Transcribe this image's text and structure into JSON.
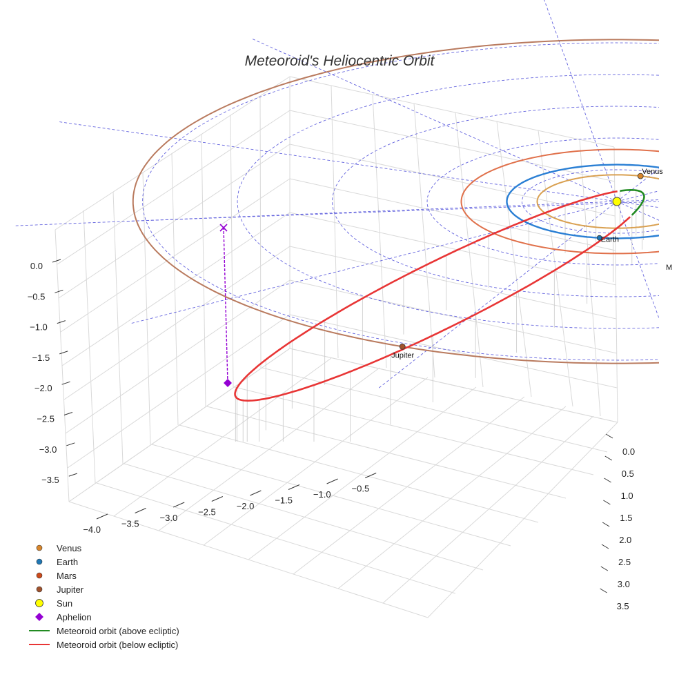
{
  "chart_data": {
    "type": "line",
    "title": "Meteoroid's Heliocentric Orbit",
    "projection": "3d",
    "xlabel": "",
    "ylabel": "",
    "zlabel": "",
    "x_ticks": [
      "−4.0",
      "−3.5",
      "−3.0",
      "−2.5",
      "−2.0",
      "−1.5",
      "−1.0",
      "−0.5"
    ],
    "y_ticks": [
      "0.0",
      "0.5",
      "1.0",
      "1.5",
      "2.0",
      "2.5",
      "3.0",
      "3.5"
    ],
    "z_ticks": [
      "0.0",
      "−0.5",
      "−1.0",
      "−1.5",
      "−2.0",
      "−2.5",
      "−3.0",
      "−3.5"
    ],
    "xlim": [
      -4.2,
      -0.3
    ],
    "ylim": [
      -0.2,
      3.7
    ],
    "zlim": [
      -3.7,
      0.3
    ],
    "grid": true,
    "legend_position": "bottom-left",
    "colors": {
      "venus": "#d8862c",
      "earth": "#1f77b4",
      "mars": "#cc4a1c",
      "jupiter": "#a0522d",
      "sun": "#ffff00",
      "aphelion": "#9400d3",
      "above": "#228b22",
      "below": "#e83535",
      "venus_orbit": "#d9a050",
      "earth_orbit": "#2a7fd4",
      "mars_orbit": "#e0704a",
      "jupiter_orbit": "#b97a5e",
      "reference_grid": "#4a4ad9"
    },
    "planets": [
      {
        "name": "Venus",
        "label": "Venus",
        "orbit_radius_au": 0.72
      },
      {
        "name": "Earth",
        "label": "Earth",
        "orbit_radius_au": 1.0
      },
      {
        "name": "Mars",
        "label": "M",
        "orbit_radius_au": 1.52
      },
      {
        "name": "Jupiter",
        "label": "Jupiter",
        "orbit_radius_au": 5.2
      }
    ],
    "sun": {
      "name": "Sun",
      "position_au": [
        0,
        0,
        0
      ]
    },
    "aphelion": {
      "name": "Aphelion",
      "position_au": [
        -3.9,
        0.6,
        -1.6
      ]
    },
    "meteoroid_orbit": {
      "perihelion_au": 0.45,
      "aphelion_au": 4.0,
      "series": [
        {
          "name": "Meteoroid orbit (above ecliptic)",
          "z_sign": "positive"
        },
        {
          "name": "Meteoroid orbit (below ecliptic)",
          "z_sign": "negative"
        }
      ]
    },
    "legend": [
      {
        "key": "venus",
        "label": "Venus",
        "marker": "dot"
      },
      {
        "key": "earth",
        "label": "Earth",
        "marker": "dot"
      },
      {
        "key": "mars",
        "label": "Mars",
        "marker": "dot"
      },
      {
        "key": "jupiter",
        "label": "Jupiter",
        "marker": "dot"
      },
      {
        "key": "sun",
        "label": "Sun",
        "marker": "circle"
      },
      {
        "key": "aphelion",
        "label": "Aphelion",
        "marker": "diamond"
      },
      {
        "key": "above",
        "label": "Meteoroid orbit (above ecliptic)",
        "marker": "line"
      },
      {
        "key": "below",
        "label": "Meteoroid orbit (below ecliptic)",
        "marker": "line"
      }
    ]
  }
}
